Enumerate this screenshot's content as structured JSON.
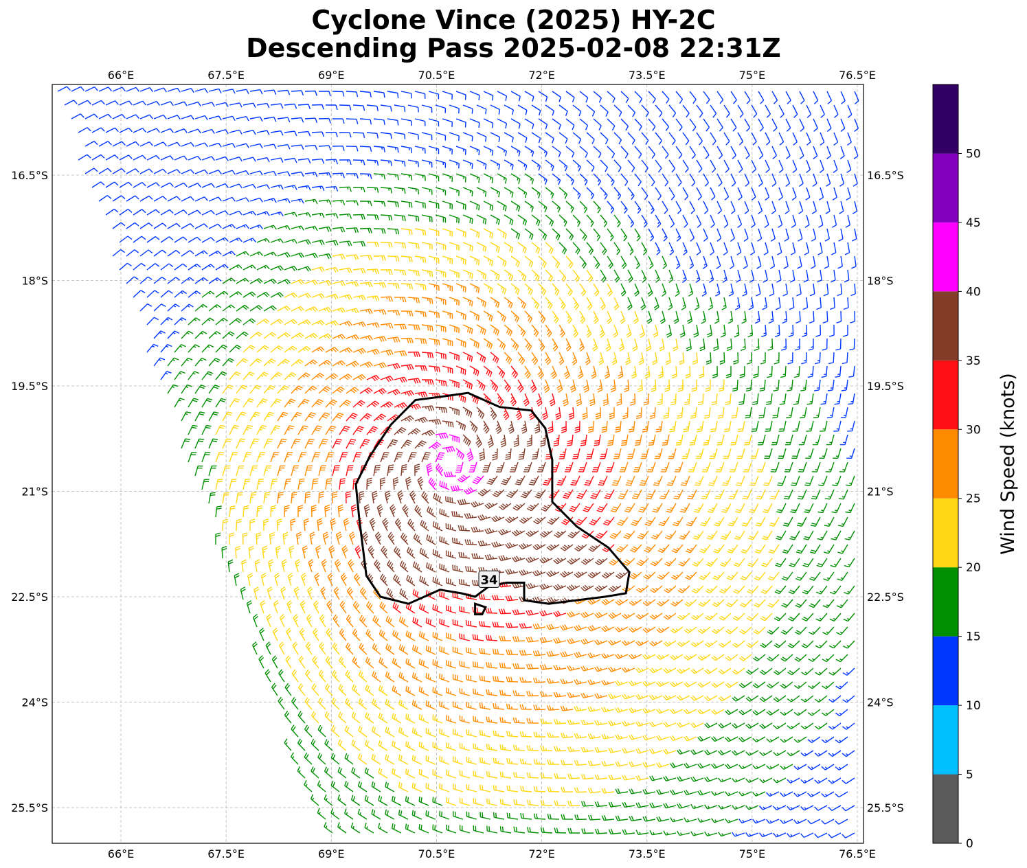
{
  "title": {
    "line1": "Cyclone Vince (2025) HY-2C",
    "line2": "Descending Pass 2025-02-08 22:31Z"
  },
  "map": {
    "lon_range": [
      64.5,
      76.6
    ],
    "lat_range": [
      -26.0,
      -15.2
    ],
    "lon_ticks": [
      {
        "value": 66.0,
        "label": "66°E"
      },
      {
        "value": 67.5,
        "label": "67.5°E"
      },
      {
        "value": 69.0,
        "label": "69°E"
      },
      {
        "value": 70.5,
        "label": "70.5°E"
      },
      {
        "value": 72.0,
        "label": "72°E"
      },
      {
        "value": 73.5,
        "label": "73.5°E"
      },
      {
        "value": 75.0,
        "label": "75°E"
      },
      {
        "value": 76.5,
        "label": "76.5°E"
      }
    ],
    "lat_ticks": [
      {
        "value": -16.5,
        "label": "16.5°S"
      },
      {
        "value": -18.0,
        "label": "18°S"
      },
      {
        "value": -19.5,
        "label": "19.5°S"
      },
      {
        "value": -21.0,
        "label": "21°S"
      },
      {
        "value": -22.5,
        "label": "22.5°S"
      },
      {
        "value": -24.0,
        "label": "24°S"
      },
      {
        "value": -25.5,
        "label": "25.5°S"
      }
    ],
    "gridlines": true,
    "storm_center": {
      "lon": 70.7,
      "lat": -20.6
    },
    "contour": {
      "label": "34",
      "label_pos": {
        "lon": 71.25,
        "lat": -22.25
      },
      "points": [
        [
          69.35,
          -20.9
        ],
        [
          69.55,
          -20.5
        ],
        [
          69.85,
          -20.05
        ],
        [
          70.2,
          -19.7
        ],
        [
          70.6,
          -19.65
        ],
        [
          70.95,
          -19.6
        ],
        [
          71.4,
          -19.8
        ],
        [
          71.85,
          -19.85
        ],
        [
          72.05,
          -20.1
        ],
        [
          72.15,
          -20.55
        ],
        [
          72.15,
          -21.15
        ],
        [
          72.5,
          -21.5
        ],
        [
          72.95,
          -21.8
        ],
        [
          73.25,
          -22.15
        ],
        [
          73.2,
          -22.45
        ],
        [
          72.9,
          -22.5
        ],
        [
          72.5,
          -22.55
        ],
        [
          72.1,
          -22.6
        ],
        [
          71.75,
          -22.55
        ],
        [
          71.75,
          -22.3
        ],
        [
          71.5,
          -22.3
        ],
        [
          71.25,
          -22.35
        ],
        [
          71.05,
          -22.5
        ],
        [
          70.85,
          -22.45
        ],
        [
          70.55,
          -22.4
        ],
        [
          70.1,
          -22.6
        ],
        [
          69.7,
          -22.5
        ],
        [
          69.5,
          -22.2
        ],
        [
          69.45,
          -21.8
        ],
        [
          69.4,
          -21.4
        ]
      ],
      "islet": [
        [
          71.05,
          -22.6
        ],
        [
          71.2,
          -22.65
        ],
        [
          71.15,
          -22.75
        ],
        [
          71.05,
          -22.75
        ]
      ]
    },
    "swath": {
      "northwest_edge_note": "",
      "upper_left_lon": 64.5
    }
  },
  "colorbar": {
    "title": "Wind Speed (knots)",
    "bands": [
      {
        "from": 0,
        "to": 5,
        "color": "#5a5a5a"
      },
      {
        "from": 5,
        "to": 10,
        "color": "#00bfff"
      },
      {
        "from": 10,
        "to": 15,
        "color": "#0037ff"
      },
      {
        "from": 15,
        "to": 20,
        "color": "#008f00"
      },
      {
        "from": 20,
        "to": 25,
        "color": "#ffd714"
      },
      {
        "from": 25,
        "to": 30,
        "color": "#ff8c00"
      },
      {
        "from": 30,
        "to": 35,
        "color": "#ff0f14"
      },
      {
        "from": 35,
        "to": 40,
        "color": "#823c28"
      },
      {
        "from": 40,
        "to": 45,
        "color": "#ff00ff"
      },
      {
        "from": 45,
        "to": 50,
        "color": "#8200be"
      },
      {
        "from": 50,
        "to": 55,
        "color": "#320064"
      }
    ],
    "tick_values": [
      0,
      5,
      10,
      15,
      20,
      25,
      30,
      35,
      40,
      45,
      50
    ]
  }
}
